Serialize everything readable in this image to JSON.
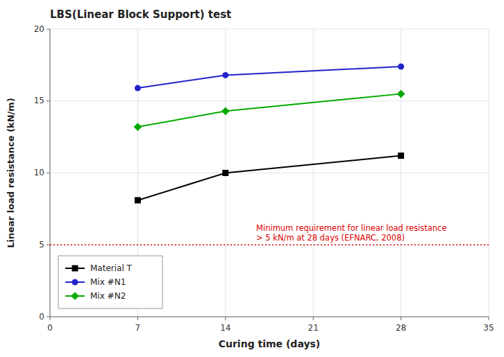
{
  "chart_data": {
    "type": "line",
    "title": "LBS(Linear Block Support) test",
    "x_label": "Curing time (days)",
    "y_label": "Linear load resistance (kN/m)",
    "x": [
      7,
      14,
      28
    ],
    "xlim": [
      0,
      35
    ],
    "ylim": [
      0,
      20
    ],
    "xticks": [
      0,
      7,
      14,
      21,
      28,
      35
    ],
    "yticks": [
      0,
      5,
      10,
      15,
      20
    ],
    "series": [
      {
        "name": "Material T",
        "color": "#000000",
        "marker": "square",
        "values": [
          8.1,
          10.0,
          11.2
        ]
      },
      {
        "name": "Mix #N1",
        "color": "#2222cc",
        "marker": "circle",
        "values": [
          15.9,
          16.8,
          17.4
        ]
      },
      {
        "name": "Mix #N2",
        "color": "#00aa00",
        "marker": "diamond",
        "values": [
          13.2,
          14.3,
          15.5
        ]
      }
    ],
    "reference_line": {
      "value": 5,
      "color": "#dd0000",
      "line_style": "dotted",
      "label": "Minimum requirement for linear load resistance\n> 5 kN/m at 28 days (EFNARC, 2008)"
    },
    "grid": true,
    "legend": "lower left"
  }
}
